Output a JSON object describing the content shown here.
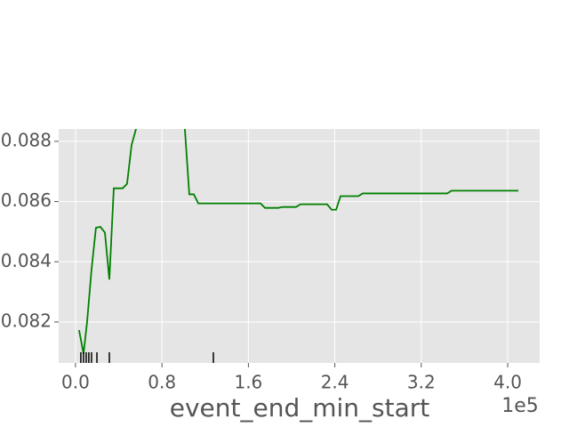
{
  "chart_data": {
    "type": "line",
    "x_label": "event_end_min_start",
    "x_offset_label": "1e5",
    "x": [
      0.033,
      0.074,
      0.107,
      0.148,
      0.189,
      0.23,
      0.272,
      0.313,
      0.354,
      0.436,
      0.477,
      0.519,
      0.576,
      0.617,
      0.782,
      0.947,
      1.012,
      1.053,
      1.095,
      1.136,
      1.712,
      1.753,
      1.877,
      1.918,
      2.041,
      2.082,
      2.329,
      2.37,
      2.412,
      2.453,
      2.617,
      2.658,
      3.44,
      3.481,
      4.099
    ],
    "series": [
      {
        "color": "#008000",
        "values": [
          0.08173,
          0.08094,
          0.082,
          0.08374,
          0.08513,
          0.08516,
          0.08497,
          0.08341,
          0.08644,
          0.08644,
          0.08659,
          0.08788,
          0.08862,
          0.089,
          0.08944,
          0.08929,
          0.08841,
          0.08624,
          0.08624,
          0.08594,
          0.08594,
          0.08579,
          0.08579,
          0.08582,
          0.08582,
          0.08591,
          0.08591,
          0.08573,
          0.08573,
          0.08618,
          0.08618,
          0.08627,
          0.08627,
          0.08636,
          0.08636
        ]
      }
    ],
    "rug": [
      0.049,
      0.074,
      0.099,
      0.123,
      0.148,
      0.198,
      0.313,
      1.276
    ],
    "rug_color": "#000000",
    "xlim": [
      -0.156,
      4.296
    ],
    "ylim": [
      0.08064,
      0.08841
    ],
    "xticks": [
      {
        "value": 0,
        "label": "0.0"
      },
      0.8,
      1.6,
      2.4,
      3.2,
      {
        "value": 4,
        "label": "4.0"
      }
    ],
    "yticks": [
      0.082,
      0.084,
      0.086,
      0.088
    ],
    "grid": true
  }
}
